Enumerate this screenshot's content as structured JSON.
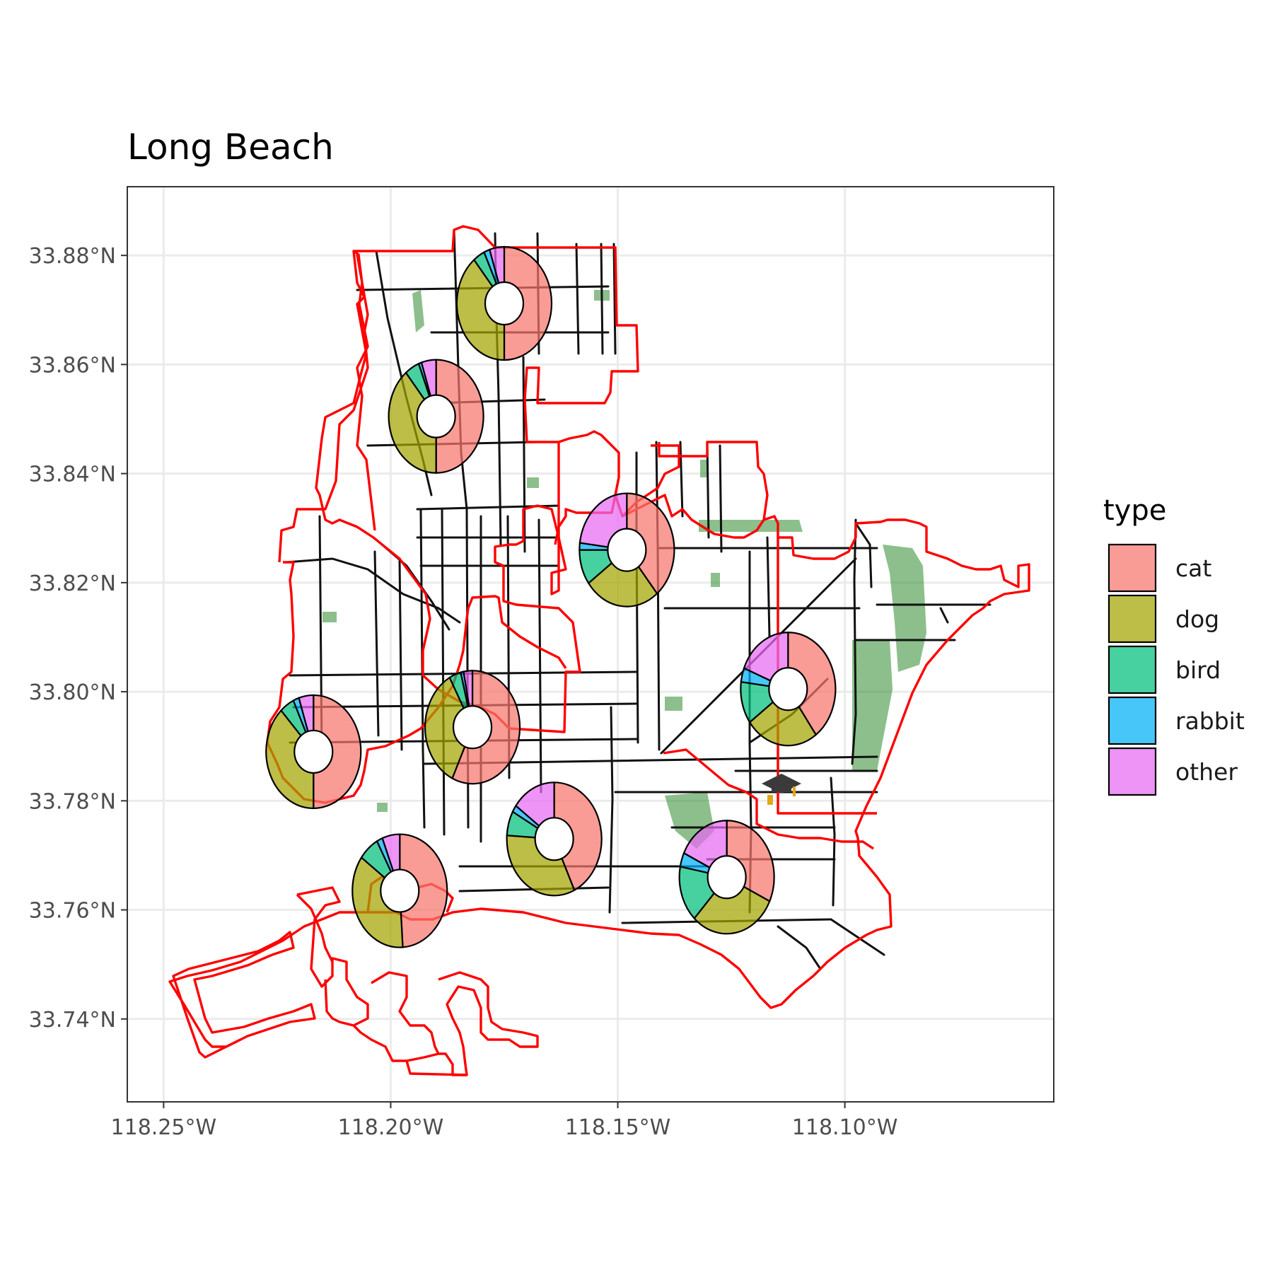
{
  "map": {
    "title": "Long Beach",
    "x_axis": {
      "ticks": [
        {
          "label": "118.25°W",
          "lon": -118.25
        },
        {
          "label": "118.20°W",
          "lon": -118.2
        },
        {
          "label": "118.15°W",
          "lon": -118.15
        },
        {
          "label": "118.10°W",
          "lon": -118.1
        }
      ],
      "range": [
        -118.258,
        -118.054
      ]
    },
    "y_axis": {
      "ticks": [
        {
          "label": "33.88°N",
          "lat": 33.88
        },
        {
          "label": "33.86°N",
          "lat": 33.86
        },
        {
          "label": "33.84°N",
          "lat": 33.84
        },
        {
          "label": "33.82°N",
          "lat": 33.82
        },
        {
          "label": "33.80°N",
          "lat": 33.8
        },
        {
          "label": "33.78°N",
          "lat": 33.78
        },
        {
          "label": "33.76°N",
          "lat": 33.76
        },
        {
          "label": "33.74°N",
          "lat": 33.74
        }
      ],
      "range": [
        33.7248,
        33.8926
      ]
    },
    "grid": true,
    "layers": [
      "city boundary districts (red outline)",
      "streets (black lines)",
      "parks (green)"
    ],
    "marker_icon": "graduation-cap-icon",
    "colors": {
      "boundary": "#ff0000",
      "roads": "#111111",
      "parks": "#2e8b2e",
      "cat": "#f8766d",
      "dog": "#a3a500",
      "bird": "#00bf7d",
      "rabbit": "#00b0f6",
      "other": "#e76bf3"
    }
  },
  "legend": {
    "title": "type",
    "position": "right",
    "items": [
      {
        "key": "cat",
        "label": "cat"
      },
      {
        "key": "dog",
        "label": "dog"
      },
      {
        "key": "bird",
        "label": "bird"
      },
      {
        "key": "rabbit",
        "label": "rabbit"
      },
      {
        "key": "other",
        "label": "other"
      }
    ]
  },
  "chart_data": {
    "type": "pie",
    "subtype": "donut charts placed on a map",
    "categories": [
      "cat",
      "dog",
      "bird",
      "rabbit",
      "other"
    ],
    "donuts": [
      {
        "lon": -118.175,
        "lat": 33.8712,
        "values": {
          "cat": 0.5,
          "dog": 0.39,
          "bird": 0.04,
          "rabbit": 0.02,
          "other": 0.05
        }
      },
      {
        "lon": -118.19,
        "lat": 33.8505,
        "values": {
          "cat": 0.5,
          "dog": 0.39,
          "bird": 0.05,
          "rabbit": 0.01,
          "other": 0.05
        }
      },
      {
        "lon": -118.148,
        "lat": 33.826,
        "values": {
          "cat": 0.39,
          "dog": 0.26,
          "bird": 0.1,
          "rabbit": 0.02,
          "other": 0.23
        }
      },
      {
        "lon": -118.1125,
        "lat": 33.8005,
        "values": {
          "cat": 0.4,
          "dog": 0.25,
          "bird": 0.12,
          "rabbit": 0.04,
          "other": 0.19
        }
      },
      {
        "lon": -118.182,
        "lat": 33.7935,
        "values": {
          "cat": 0.57,
          "dog": 0.35,
          "bird": 0.04,
          "rabbit": 0.01,
          "other": 0.03
        }
      },
      {
        "lon": -118.217,
        "lat": 33.789,
        "values": {
          "cat": 0.5,
          "dog": 0.38,
          "bird": 0.05,
          "rabbit": 0.02,
          "other": 0.05
        }
      },
      {
        "lon": -118.164,
        "lat": 33.773,
        "values": {
          "cat": 0.43,
          "dog": 0.33,
          "bird": 0.07,
          "rabbit": 0.02,
          "other": 0.15
        }
      },
      {
        "lon": -118.198,
        "lat": 33.7635,
        "values": {
          "cat": 0.49,
          "dog": 0.36,
          "bird": 0.07,
          "rabbit": 0.02,
          "other": 0.06
        }
      },
      {
        "lon": -118.126,
        "lat": 33.766,
        "values": {
          "cat": 0.32,
          "dog": 0.3,
          "bird": 0.16,
          "rabbit": 0.04,
          "other": 0.18
        }
      }
    ]
  }
}
